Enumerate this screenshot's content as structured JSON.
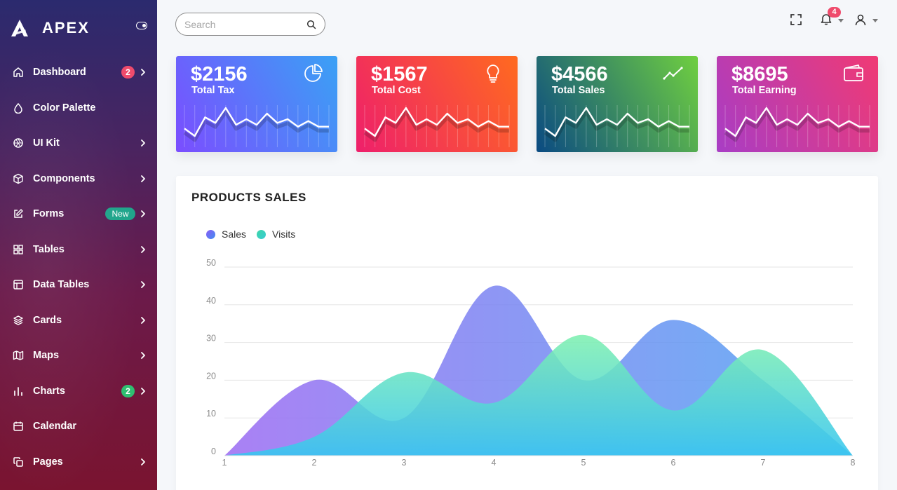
{
  "brand": {
    "name": "APEX",
    "logo_icon": "apex-logo-icon",
    "toggle_icon": "sidebar-toggle-icon"
  },
  "sidebar": {
    "items": [
      {
        "label": "Dashboard",
        "icon": "home-icon",
        "badge": "2",
        "badge_type": "red",
        "chevron": true
      },
      {
        "label": "Color Palette",
        "icon": "droplet-icon",
        "chevron": false
      },
      {
        "label": "UI Kit",
        "icon": "aperture-icon",
        "chevron": true
      },
      {
        "label": "Components",
        "icon": "box-icon",
        "chevron": true
      },
      {
        "label": "Forms",
        "icon": "edit-icon",
        "badge": "New",
        "badge_type": "new",
        "chevron": true
      },
      {
        "label": "Tables",
        "icon": "grid-icon",
        "chevron": true
      },
      {
        "label": "Data Tables",
        "icon": "layout-icon",
        "chevron": true
      },
      {
        "label": "Cards",
        "icon": "layers-icon",
        "chevron": true
      },
      {
        "label": "Maps",
        "icon": "map-icon",
        "chevron": true
      },
      {
        "label": "Charts",
        "icon": "bar-chart-icon",
        "badge": "2",
        "badge_type": "green",
        "chevron": true
      },
      {
        "label": "Calendar",
        "icon": "calendar-icon",
        "chevron": false
      },
      {
        "label": "Pages",
        "icon": "copy-icon",
        "chevron": true
      }
    ]
  },
  "topbar": {
    "search": {
      "placeholder": "Search",
      "value": ""
    },
    "notifications_count": "4"
  },
  "cards": [
    {
      "value": "$2156",
      "label": "Total Tax",
      "icon": "pie-chart-icon",
      "gradient": [
        "#7b4dff",
        "#3aa1f5"
      ]
    },
    {
      "value": "$1567",
      "label": "Total Cost",
      "icon": "lightbulb-icon",
      "gradient": [
        "#ee1f6b",
        "#ff6a1f"
      ]
    },
    {
      "value": "$4566",
      "label": "Total Sales",
      "icon": "trending-up-icon",
      "gradient": [
        "#0a4a82",
        "#6fcf40"
      ]
    },
    {
      "value": "$8695",
      "label": "Total Earning",
      "icon": "wallet-icon",
      "gradient": [
        "#a83dc5",
        "#f03a74"
      ]
    }
  ],
  "sparkline": [
    4,
    0,
    10,
    7,
    15,
    6,
    9,
    6,
    12,
    7,
    9,
    5,
    8,
    5,
    5
  ],
  "products": {
    "title": "PRODUCTS SALES",
    "legend": [
      {
        "name": "Sales",
        "color": "#6a6ff2"
      },
      {
        "name": "Visits",
        "color": "#3ed6a9"
      }
    ]
  },
  "chart_data": {
    "type": "area",
    "x": [
      1,
      2,
      3,
      4,
      5,
      6,
      7,
      8
    ],
    "series": [
      {
        "name": "Sales",
        "values": [
          0,
          20,
          10,
          45,
          20,
          36,
          20,
          0
        ]
      },
      {
        "name": "Visits",
        "values": [
          0,
          5,
          22,
          14,
          32,
          12,
          28,
          0
        ]
      }
    ],
    "ylim": [
      0,
      50
    ],
    "yticks": [
      0,
      10,
      20,
      30,
      40,
      50
    ],
    "grid": true,
    "legend_position": "top-left"
  }
}
